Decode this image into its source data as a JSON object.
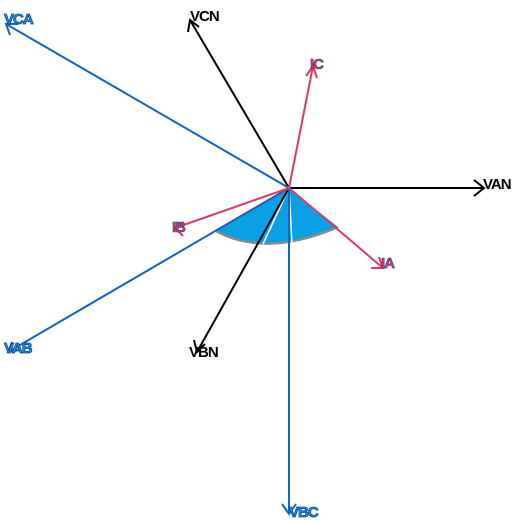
{
  "colors": {
    "voltage_phase": "#000000",
    "voltage_line": "#1565c0",
    "current": "#e8375f",
    "angle_fill": "#0aa0e6",
    "angle_edge": "#8a8a8a",
    "label_outline": "#1a3f8f"
  },
  "labels": {
    "van": "VAN",
    "vbn": "VBN",
    "vcn": "VCN",
    "vab": "VAB",
    "vbc": "VBC",
    "vca": "VCA",
    "ia": "IA",
    "ib": "IB",
    "ic": "IC"
  }
}
